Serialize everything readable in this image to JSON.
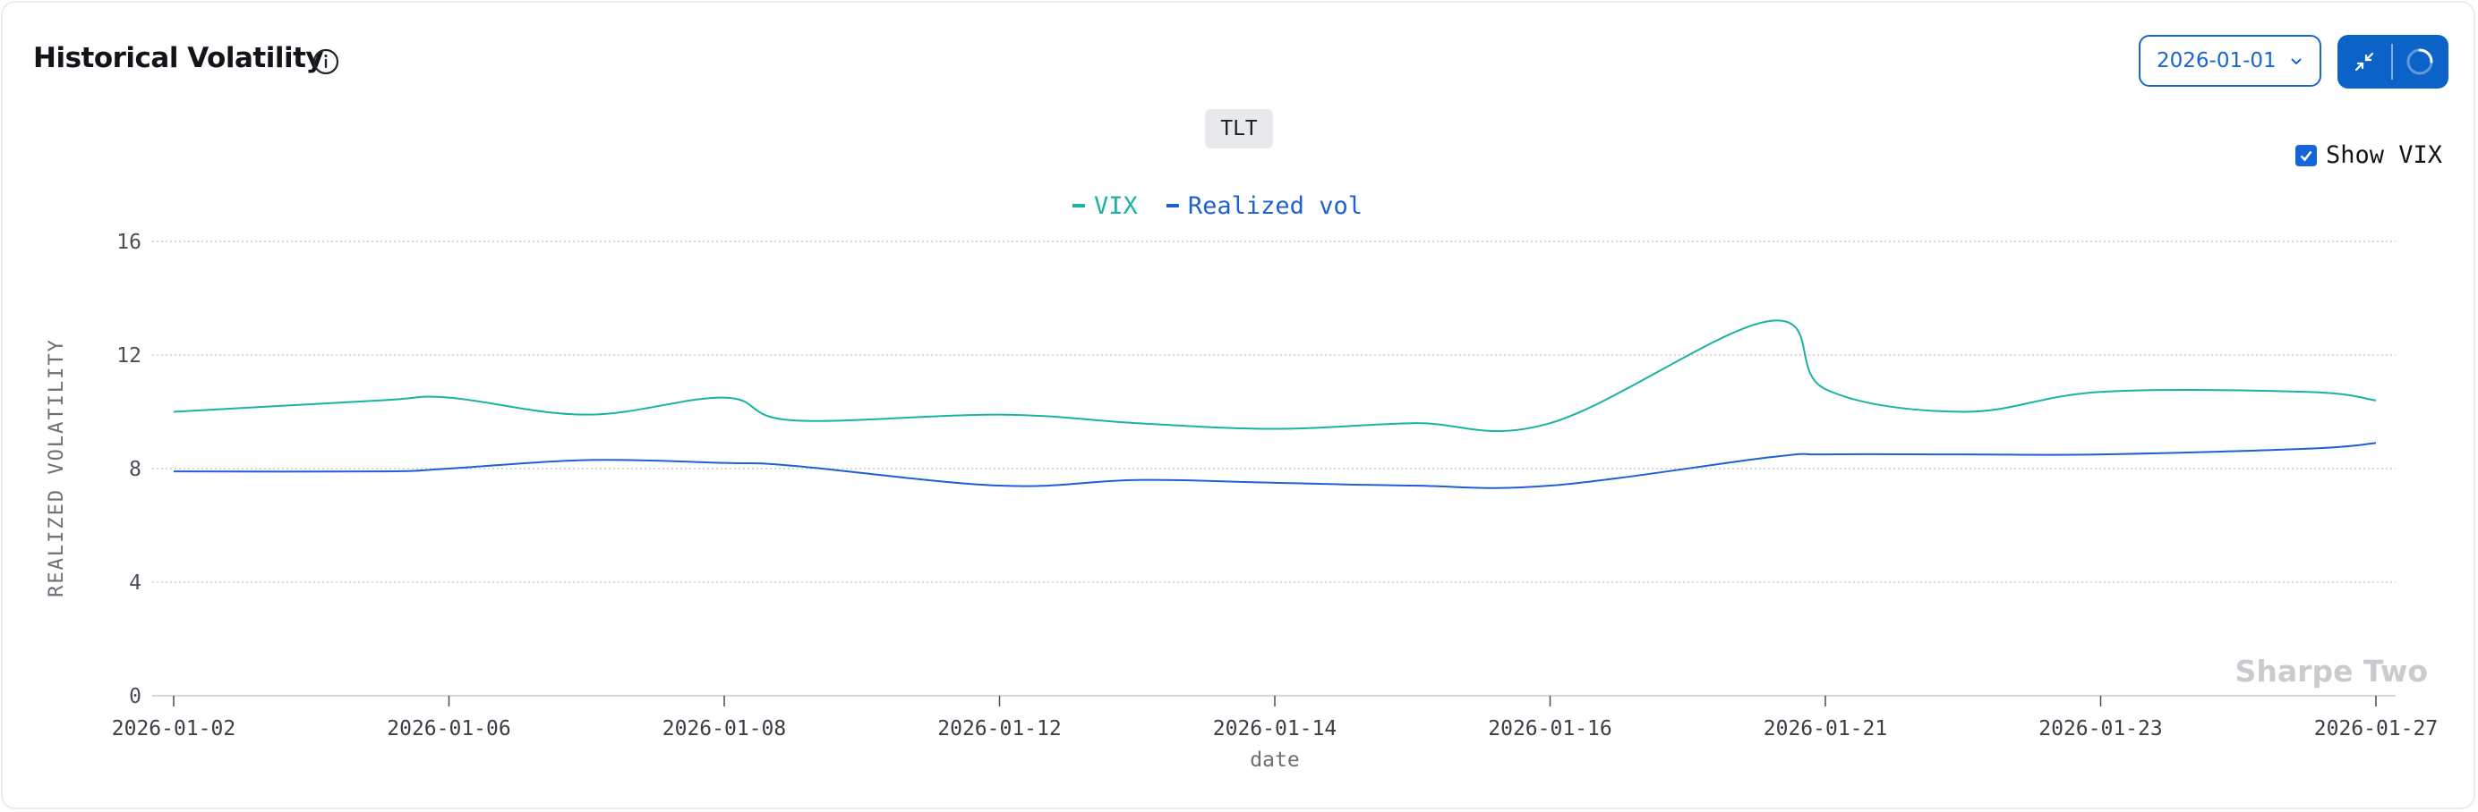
{
  "header": {
    "title": "Historical Volatility",
    "info_icon": "info-circle-icon",
    "date_value": "2026-01-01",
    "date_chevron_icon": "chevron-down-icon",
    "collapse_icon": "collapse-arrows-icon",
    "loading_icon": "loading-spinner-icon"
  },
  "ticker": "TLT",
  "show_vix": {
    "label": "Show VIX",
    "checked": true
  },
  "watermark": "Sharpe Two",
  "colors": {
    "vix": "#1ab3a0",
    "realized": "#1e5fd6",
    "accent": "#0b63c8"
  },
  "chart_data": {
    "type": "line",
    "title": "",
    "xlabel": "date",
    "ylabel": "REALIZED VOLATILITY",
    "ylim": [
      0,
      16
    ],
    "yticks": [
      0,
      4,
      8,
      12,
      16
    ],
    "grid": "horizontal dotted",
    "legend_position": "top-center",
    "x_ticks": [
      "2026-01-02",
      "2026-01-06",
      "2026-01-08",
      "2026-01-12",
      "2026-01-14",
      "2026-01-16",
      "2026-01-21",
      "2026-01-23",
      "2026-01-27"
    ],
    "x": [
      "2026-01-02",
      "2026-01-05",
      "2026-01-06",
      "2026-01-07",
      "2026-01-08",
      "2026-01-09",
      "2026-01-12",
      "2026-01-13",
      "2026-01-14",
      "2026-01-15",
      "2026-01-16",
      "2026-01-20",
      "2026-01-21",
      "2026-01-22",
      "2026-01-23",
      "2026-01-26",
      "2026-01-27"
    ],
    "series": [
      {
        "name": "VIX",
        "values": [
          10.0,
          10.4,
          10.5,
          9.9,
          10.5,
          9.7,
          9.9,
          9.6,
          9.4,
          9.6,
          9.6,
          13.2,
          10.8,
          10.0,
          10.7,
          10.7,
          10.4
        ]
      },
      {
        "name": "Realized vol",
        "values": [
          7.9,
          7.9,
          8.0,
          8.3,
          8.2,
          8.1,
          7.4,
          7.6,
          7.5,
          7.4,
          7.4,
          8.4,
          8.5,
          8.5,
          8.5,
          8.7,
          8.9
        ]
      }
    ]
  }
}
